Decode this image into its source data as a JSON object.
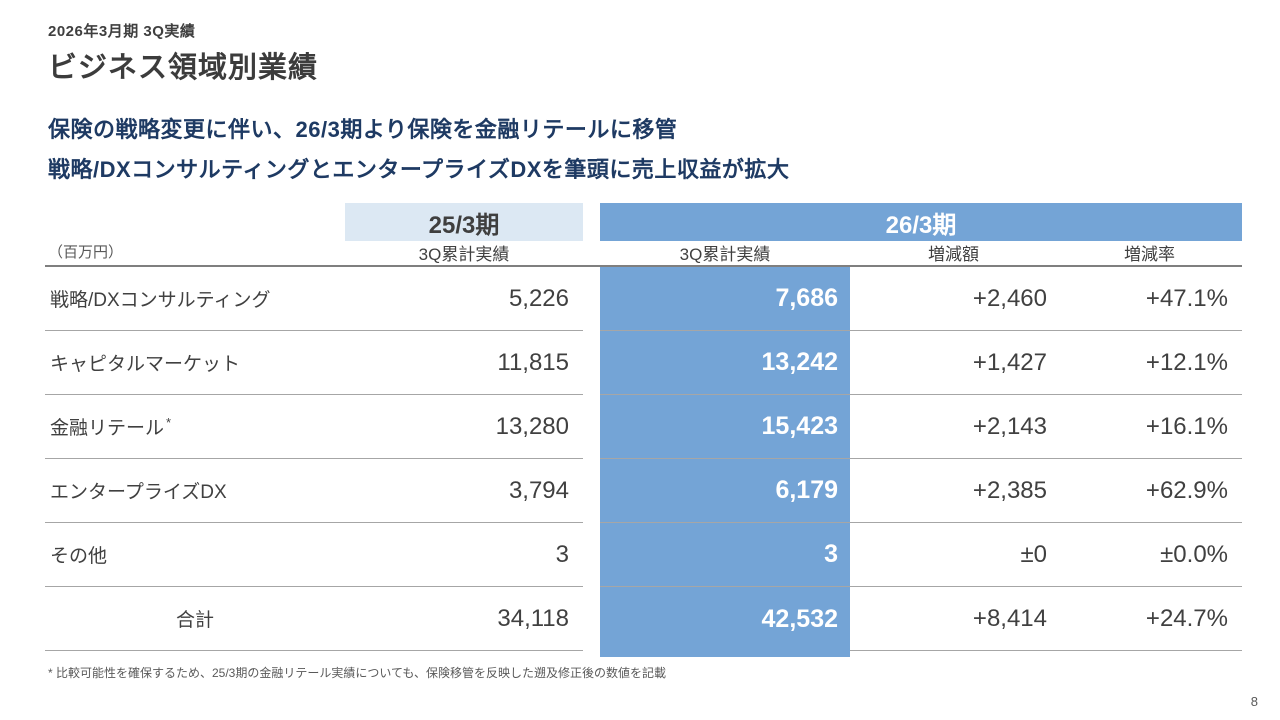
{
  "slide": {
    "eyebrow": "2026年3月期 3Q実績",
    "title": "ビジネス領域別業績",
    "message_line1": "保険の戦略変更に伴い、26/3期より保険を金融リテールに移管",
    "message_line2": "戦略/DXコンサルティングとエンタープライズDXを筆頭に売上収益が拡大",
    "footnote": "* 比較可能性を確保するため、25/3期の金融リテール実績についても、保険移管を反映した遡及修正後の数値を記載",
    "page_number": "8"
  },
  "table": {
    "unit_label": "（百万円）",
    "group_headers": {
      "prev": "25/3期",
      "curr": "26/3期"
    },
    "subheaders": {
      "prev_actual": "3Q累計実績",
      "curr_actual": "3Q累計実績",
      "change_amount": "増減額",
      "change_rate": "増減率"
    },
    "rows": [
      {
        "label": "戦略/DXコンサルティング",
        "prev": "5,226",
        "curr": "7,686",
        "change": "+2,460",
        "rate": "+47.1%"
      },
      {
        "label": "キャピタルマーケット",
        "prev": "11,815",
        "curr": "13,242",
        "change": "+1,427",
        "rate": "+12.1%"
      },
      {
        "label": "金融リテール",
        "note": "*",
        "prev": "13,280",
        "curr": "15,423",
        "change": "+2,143",
        "rate": "+16.1%"
      },
      {
        "label": "エンタープライズDX",
        "prev": "3,794",
        "curr": "6,179",
        "change": "+2,385",
        "rate": "+62.9%"
      },
      {
        "label": "その他",
        "prev": "3",
        "curr": "3",
        "change": "±0",
        "rate": "±0.0%"
      },
      {
        "label": "合計",
        "prev": "34,118",
        "curr": "42,532",
        "change": "+8,414",
        "rate": "+24.7%"
      }
    ]
  },
  "colors": {
    "accent_blue": "#74a4d6",
    "light_blue": "#dce8f3",
    "message_navy": "#1e3a63",
    "text_gray": "#404040",
    "line_gray": "#a6a6a6",
    "header_line_gray": "#7f7f7f"
  }
}
